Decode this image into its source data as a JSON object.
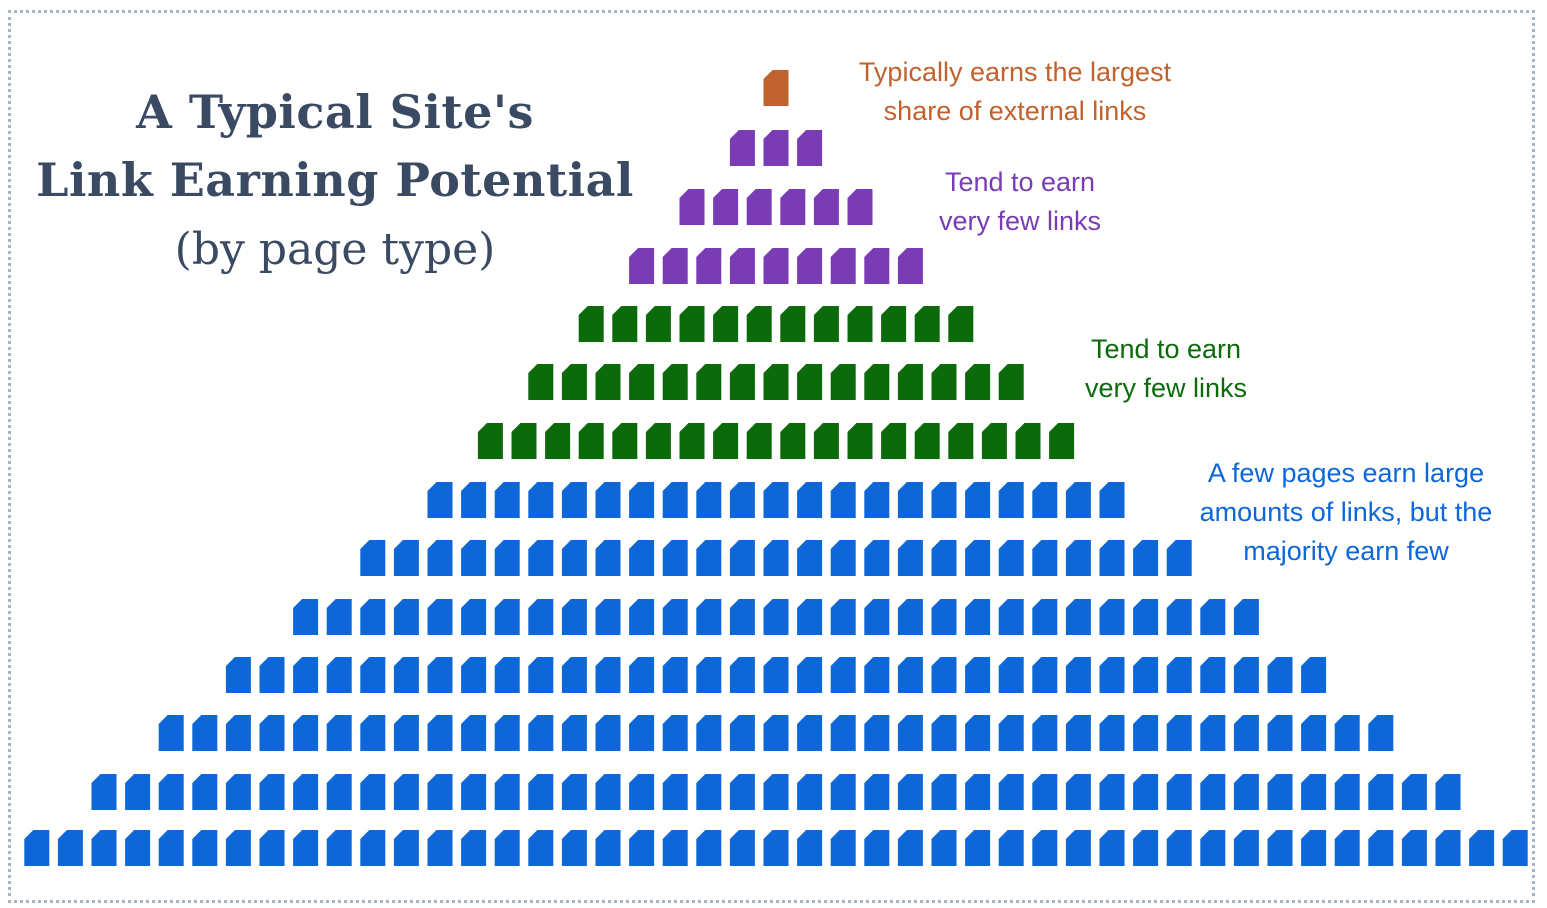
{
  "title": {
    "line1": "A Typical Site's",
    "line2": "Link Earning Potential",
    "line3": "(by page type)"
  },
  "notes": {
    "top": {
      "line1": "Typically earns the largest",
      "line2": "share of external links"
    },
    "purple": {
      "line1": "Tend to earn",
      "line2": "very few links"
    },
    "green": {
      "line1": "Tend to earn",
      "line2": "very few links"
    },
    "blue": {
      "line1": "A few pages earn large",
      "line2": "amounts of links, but the",
      "line3": "majority earn few"
    }
  },
  "colors": {
    "title": "#3b4a63",
    "top": "#c0622e",
    "purple": "#7a3cb5",
    "green": "#0b6b0b",
    "blue": "#0d67d8",
    "frame": "#a9b6c6"
  },
  "icon": "document-page-icon",
  "pyramid_rows": [
    {
      "tier": "top",
      "count": 1
    },
    {
      "tier": "purple",
      "count": 3
    },
    {
      "tier": "purple",
      "count": 6
    },
    {
      "tier": "purple",
      "count": 9
    },
    {
      "tier": "green",
      "count": 12
    },
    {
      "tier": "green",
      "count": 15
    },
    {
      "tier": "green",
      "count": 18
    },
    {
      "tier": "blue",
      "count": 21
    },
    {
      "tier": "blue",
      "count": 25
    },
    {
      "tier": "blue",
      "count": 29
    },
    {
      "tier": "blue",
      "count": 33
    },
    {
      "tier": "blue",
      "count": 37
    },
    {
      "tier": "blue",
      "count": 41
    },
    {
      "tier": "blue",
      "count": 45
    }
  ]
}
